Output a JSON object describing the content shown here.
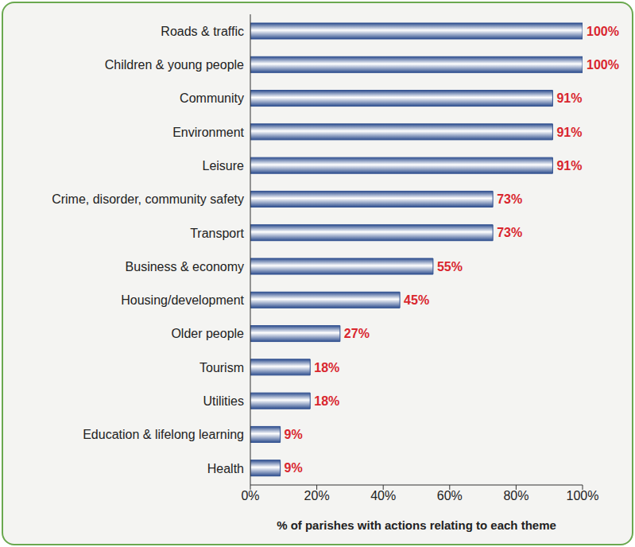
{
  "chart_data": {
    "type": "bar",
    "orientation": "horizontal",
    "categories": [
      "Roads & traffic",
      "Children & young people",
      "Community",
      "Environment",
      "Leisure",
      "Crime, disorder, community safety",
      "Transport",
      "Business & economy",
      "Housing/development",
      "Older people",
      "Tourism",
      "Utilities",
      "Education & lifelong learning",
      "Health"
    ],
    "values": [
      100,
      100,
      91,
      91,
      91,
      73,
      73,
      55,
      45,
      27,
      18,
      18,
      9,
      9
    ],
    "value_labels": [
      "100%",
      "100%",
      "91%",
      "91%",
      "91%",
      "73%",
      "73%",
      "55%",
      "45%",
      "27%",
      "18%",
      "18%",
      "9%",
      "9%"
    ],
    "data_labels": true,
    "color": "#2f4f8f",
    "x_label": "% of parishes with actions relating to each theme",
    "xlim": [
      0,
      100
    ],
    "xticks": [
      {
        "value": 0,
        "label": "0%"
      },
      {
        "value": 20,
        "label": "20%"
      },
      {
        "value": 40,
        "label": "40%"
      },
      {
        "value": 60,
        "label": "60%"
      },
      {
        "value": 80,
        "label": "80%"
      },
      {
        "value": 100,
        "label": "100%"
      }
    ],
    "grid": false
  }
}
